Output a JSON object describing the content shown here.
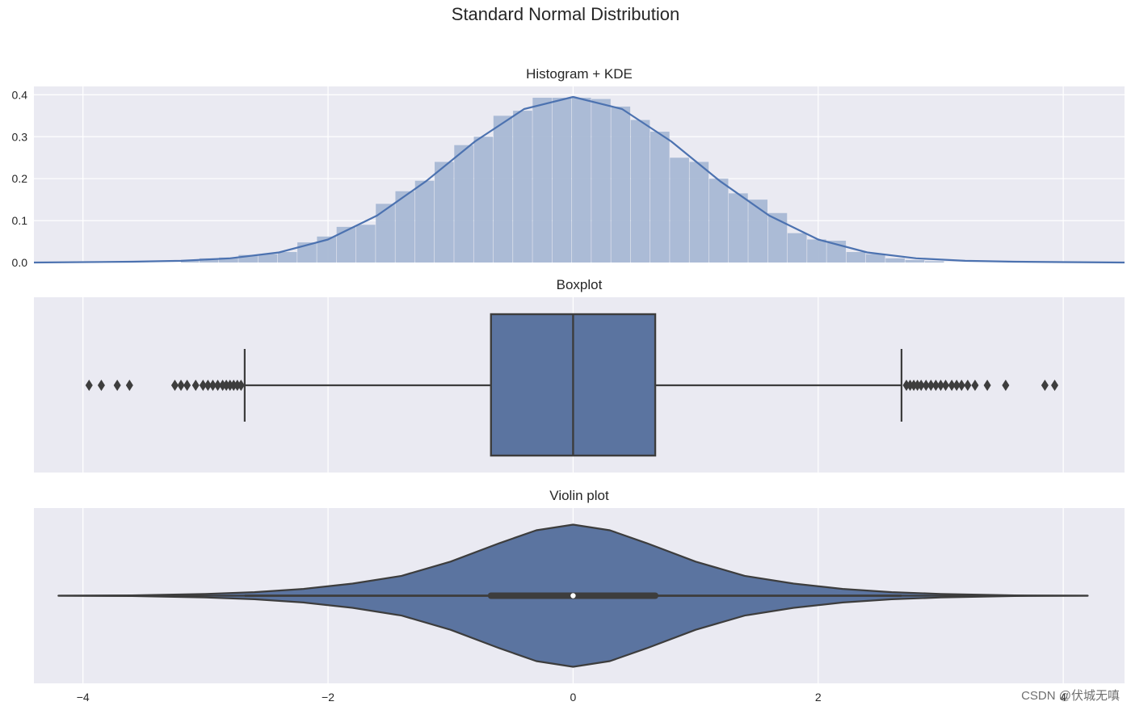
{
  "figure": {
    "suptitle": "Standard Normal Distribution",
    "watermark": "CSDN @伏城无嗔"
  },
  "chart_data": [
    {
      "type": "bar",
      "subtype": "histogram",
      "title": "Histogram + KDE",
      "xlim": [
        -4.4,
        4.5
      ],
      "ylim": [
        0,
        0.42
      ],
      "yticks": [
        0.0,
        0.1,
        0.2,
        0.3,
        0.4
      ],
      "ytick_labels": [
        "0.0",
        "0.1",
        "0.2",
        "0.3",
        "0.4"
      ],
      "grid": true,
      "bin_edges": [
        -3.2,
        -3.05,
        -2.89,
        -2.73,
        -2.57,
        -2.41,
        -2.25,
        -2.09,
        -1.93,
        -1.77,
        -1.61,
        -1.45,
        -1.29,
        -1.13,
        -0.97,
        -0.81,
        -0.65,
        -0.49,
        -0.33,
        -0.17,
        -0.01,
        0.15,
        0.31,
        0.47,
        0.63,
        0.79,
        0.95,
        1.11,
        1.27,
        1.43,
        1.59,
        1.75,
        1.91,
        2.07,
        2.23,
        2.39,
        2.55,
        2.71,
        2.87,
        3.03
      ],
      "counts": [
        0.005,
        0.01,
        0.012,
        0.018,
        0.02,
        0.025,
        0.048,
        0.062,
        0.085,
        0.09,
        0.14,
        0.17,
        0.195,
        0.24,
        0.28,
        0.3,
        0.35,
        0.362,
        0.393,
        0.393,
        0.393,
        0.39,
        0.372,
        0.34,
        0.312,
        0.25,
        0.24,
        0.2,
        0.165,
        0.15,
        0.118,
        0.07,
        0.055,
        0.052,
        0.025,
        0.02,
        0.01,
        0.006,
        0.003
      ],
      "kde": {
        "x": [
          -4.4,
          -3.6,
          -3.2,
          -2.8,
          -2.4,
          -2.0,
          -1.6,
          -1.2,
          -0.8,
          -0.4,
          0.0,
          0.4,
          0.8,
          1.2,
          1.6,
          2.0,
          2.4,
          2.8,
          3.2,
          3.6,
          4.0,
          4.5
        ],
        "y": [
          0.0,
          0.002,
          0.004,
          0.01,
          0.024,
          0.055,
          0.112,
          0.194,
          0.289,
          0.366,
          0.395,
          0.366,
          0.289,
          0.194,
          0.112,
          0.055,
          0.024,
          0.01,
          0.004,
          0.002,
          0.001,
          0.0
        ]
      },
      "colors": {
        "bars": "#a8b8d4",
        "kde": "#4c72b0"
      }
    },
    {
      "type": "box",
      "title": "Boxplot",
      "xlim": [
        -4.4,
        4.5
      ],
      "grid": true,
      "q1": -0.67,
      "median": 0.0,
      "q3": 0.67,
      "whisker_low": -2.68,
      "whisker_high": 2.68,
      "outliers": [
        -3.95,
        -3.85,
        -3.72,
        -3.62,
        -3.25,
        -3.2,
        -3.15,
        -3.08,
        -3.02,
        -2.98,
        -2.94,
        -2.9,
        -2.86,
        -2.83,
        -2.8,
        -2.77,
        -2.74,
        -2.71,
        2.72,
        2.75,
        2.78,
        2.81,
        2.84,
        2.88,
        2.92,
        2.96,
        3.0,
        3.04,
        3.09,
        3.13,
        3.17,
        3.22,
        3.28,
        3.38,
        3.53,
        3.85,
        3.93
      ],
      "colors": {
        "box": "#5b74a0",
        "edge": "#3d3d3d"
      }
    },
    {
      "type": "violin",
      "title": "Violin plot",
      "xlim": [
        -4.4,
        4.5
      ],
      "grid": true,
      "extent": [
        -4.2,
        4.2
      ],
      "q1": -0.67,
      "median": 0.0,
      "q3": 0.67,
      "whisker_low": -2.68,
      "whisker_high": 2.68,
      "density_x": [
        -4.2,
        -3.6,
        -3.0,
        -2.6,
        -2.2,
        -1.8,
        -1.4,
        -1.0,
        -0.6,
        -0.3,
        0.0,
        0.3,
        0.6,
        1.0,
        1.4,
        1.8,
        2.2,
        2.6,
        3.0,
        3.6,
        4.2
      ],
      "density_w": [
        0.0,
        0.005,
        0.025,
        0.05,
        0.095,
        0.17,
        0.28,
        0.48,
        0.74,
        0.92,
        1.0,
        0.92,
        0.74,
        0.48,
        0.28,
        0.17,
        0.095,
        0.05,
        0.025,
        0.005,
        0.0
      ],
      "xticks": [
        -4,
        -2,
        0,
        2,
        4
      ],
      "xtick_labels": [
        "−4",
        "−2",
        "0",
        "2",
        "4"
      ],
      "colors": {
        "body": "#5b74a0",
        "edge": "#3d3d3d"
      }
    }
  ]
}
